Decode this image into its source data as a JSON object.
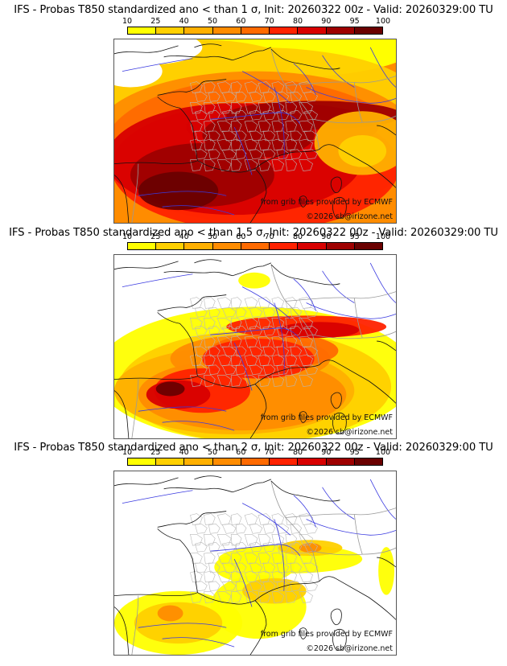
{
  "colorbar": {
    "ticks": [
      "10",
      "25",
      "40",
      "50",
      "60",
      "70",
      "80",
      "90",
      "95",
      "100"
    ],
    "colors": [
      "#ffff00",
      "#ffd000",
      "#ffb000",
      "#ff8c00",
      "#ff6a00",
      "#ff2200",
      "#d80000",
      "#9e0000",
      "#6a0000"
    ]
  },
  "panels": [
    {
      "title": "IFS - Probas T850  standardized ano < than 1 σ, Init: 20260322 00z - Valid: 20260329:00 TU",
      "credit_line1": "from grib files provided by ECMWF",
      "credit_line2": "©2026 sb@irizone.net",
      "intensity": "high"
    },
    {
      "title": "IFS - Probas T850  standardized ano < than 1.5 σ, Init: 20260322 00z - Valid: 20260329:00 TU",
      "credit_line1": "from grib files provided by ECMWF",
      "credit_line2": "©2026 sb@irizone.net",
      "intensity": "medium"
    },
    {
      "title": "IFS - Probas T850  standardized ano < than 2 σ, Init: 20260322 00z - Valid: 20260329:00 TU",
      "credit_line1": "from grib files provided by ECMWF",
      "credit_line2": "©2026 sb@irizone.net",
      "intensity": "low"
    }
  ]
}
